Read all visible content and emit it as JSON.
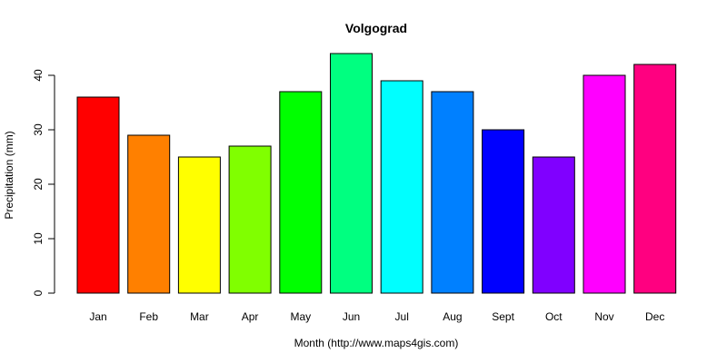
{
  "chart_data": {
    "type": "bar",
    "title": "Volgograd",
    "xlabel": "Month (http://www.maps4gis.com)",
    "ylabel": "Precipitation (mm)",
    "categories": [
      "Jan",
      "Feb",
      "Mar",
      "Apr",
      "May",
      "Jun",
      "Jul",
      "Aug",
      "Sept",
      "Oct",
      "Nov",
      "Dec"
    ],
    "values": [
      36,
      29,
      25,
      27,
      37,
      44,
      39,
      37,
      30,
      25,
      40,
      42
    ],
    "colors": [
      "#FF0000",
      "#FF8000",
      "#FFFF00",
      "#80FF00",
      "#00FF00",
      "#00FF80",
      "#00FFFF",
      "#0080FF",
      "#0000FF",
      "#8000FF",
      "#FF00FF",
      "#FF0080"
    ],
    "yticks": [
      0,
      10,
      20,
      30,
      40
    ],
    "ylim": [
      0,
      44
    ],
    "grid": false,
    "legend": "none"
  }
}
